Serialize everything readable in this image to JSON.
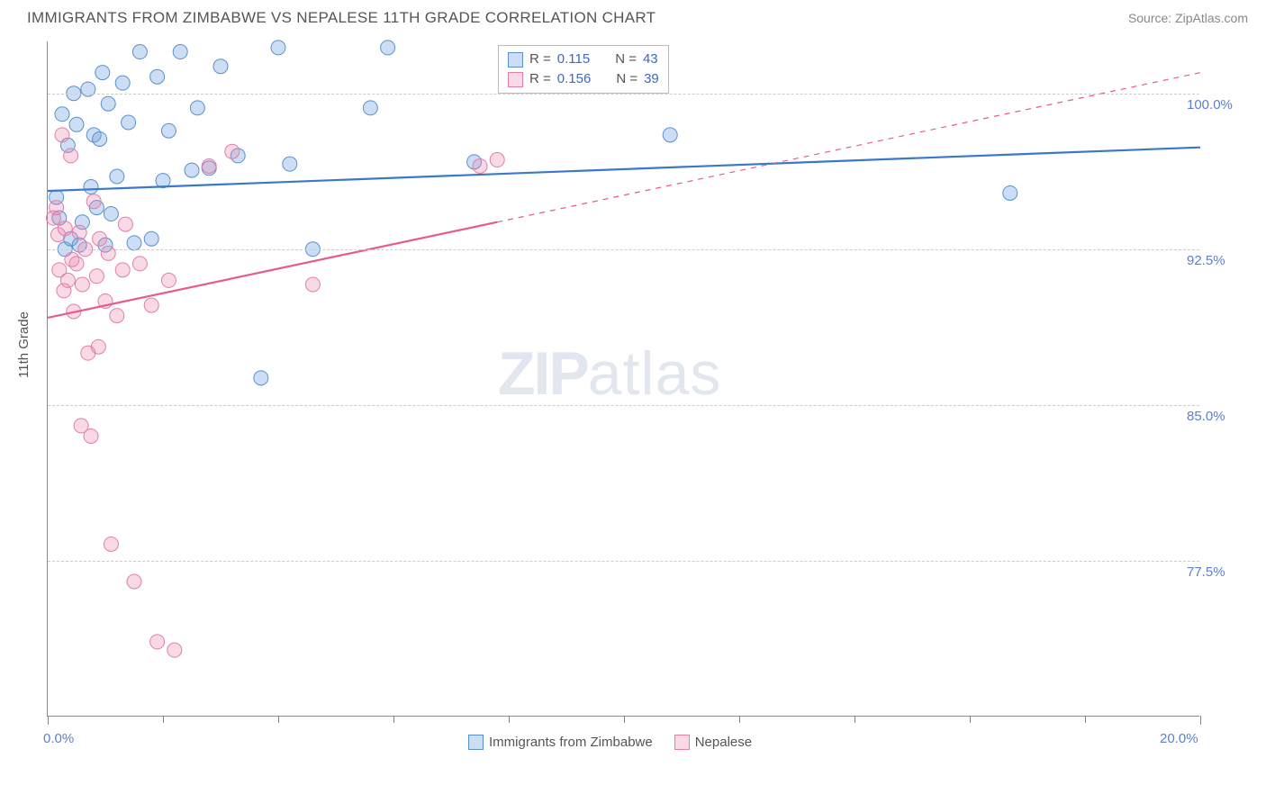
{
  "title": "IMMIGRANTS FROM ZIMBABWE VS NEPALESE 11TH GRADE CORRELATION CHART",
  "source": "Source: ZipAtlas.com",
  "ylabel": "11th Grade",
  "watermark": {
    "bold": "ZIP",
    "rest": "atlas"
  },
  "chart": {
    "type": "scatter-with-regression",
    "xlim": [
      0.0,
      20.0
    ],
    "ylim": [
      70.0,
      102.5
    ],
    "x_ticks": [
      0.0,
      20.0
    ],
    "x_tick_labels": [
      "0.0%",
      "20.0%"
    ],
    "x_minor_ticks": [
      2.0,
      4.0,
      6.0,
      8.0,
      10.0,
      12.0,
      14.0,
      16.0,
      18.0
    ],
    "y_ticks": [
      77.5,
      85.0,
      92.5,
      100.0
    ],
    "y_tick_labels": [
      "77.5%",
      "85.0%",
      "92.5%",
      "100.0%"
    ],
    "grid_color": "#cccccc",
    "axis_color": "#888888",
    "background_color": "#ffffff",
    "marker_radius": 8,
    "marker_stroke_width": 1,
    "line_width": 2.2
  },
  "series": [
    {
      "name": "Immigrants from Zimbabwe",
      "fill": "rgba(108,160,220,0.35)",
      "stroke": "#5a8fd0",
      "line_color": "#3b78c9",
      "r_label": "R = ",
      "r_value": "0.115",
      "n_label": "N = ",
      "n_value": "43",
      "regression": {
        "x1": 0.0,
        "y1": 95.3,
        "x2": 20.0,
        "y2": 97.4,
        "solid_to_x": 20.0
      },
      "points": [
        [
          0.15,
          95.0
        ],
        [
          0.2,
          94.0
        ],
        [
          0.25,
          99.0
        ],
        [
          0.3,
          92.5
        ],
        [
          0.35,
          97.5
        ],
        [
          0.4,
          93.0
        ],
        [
          0.45,
          100.0
        ],
        [
          0.5,
          98.5
        ],
        [
          0.55,
          92.7
        ],
        [
          0.6,
          93.8
        ],
        [
          0.7,
          100.2
        ],
        [
          0.75,
          95.5
        ],
        [
          0.8,
          98.0
        ],
        [
          0.85,
          94.5
        ],
        [
          0.9,
          97.8
        ],
        [
          0.95,
          101.0
        ],
        [
          1.0,
          92.7
        ],
        [
          1.05,
          99.5
        ],
        [
          1.1,
          94.2
        ],
        [
          1.2,
          96.0
        ],
        [
          1.3,
          100.5
        ],
        [
          1.4,
          98.6
        ],
        [
          1.5,
          92.8
        ],
        [
          1.6,
          102.0
        ],
        [
          1.8,
          93.0
        ],
        [
          1.9,
          100.8
        ],
        [
          2.0,
          95.8
        ],
        [
          2.1,
          98.2
        ],
        [
          2.3,
          102.0
        ],
        [
          2.5,
          96.3
        ],
        [
          2.6,
          99.3
        ],
        [
          2.8,
          96.4
        ],
        [
          3.0,
          101.3
        ],
        [
          3.3,
          97.0
        ],
        [
          3.7,
          86.3
        ],
        [
          4.0,
          102.2
        ],
        [
          4.2,
          96.6
        ],
        [
          4.6,
          92.5
        ],
        [
          5.6,
          99.3
        ],
        [
          5.9,
          102.2
        ],
        [
          7.4,
          96.7
        ],
        [
          10.8,
          98.0
        ],
        [
          16.7,
          95.2
        ]
      ]
    },
    {
      "name": "Nepalese",
      "fill": "rgba(235,130,170,0.30)",
      "stroke": "#e07fa8",
      "line_color": "#e65a8e",
      "r_label": "R = ",
      "r_value": "0.156",
      "n_label": "N = ",
      "n_value": "39",
      "regression": {
        "x1": 0.0,
        "y1": 89.2,
        "x2": 20.0,
        "y2": 101.0,
        "solid_to_x": 7.8
      },
      "points": [
        [
          0.1,
          94.0
        ],
        [
          0.15,
          94.5
        ],
        [
          0.18,
          93.2
        ],
        [
          0.2,
          91.5
        ],
        [
          0.25,
          98.0
        ],
        [
          0.28,
          90.5
        ],
        [
          0.3,
          93.5
        ],
        [
          0.35,
          91.0
        ],
        [
          0.4,
          97.0
        ],
        [
          0.42,
          92.0
        ],
        [
          0.45,
          89.5
        ],
        [
          0.5,
          91.8
        ],
        [
          0.55,
          93.3
        ],
        [
          0.58,
          84.0
        ],
        [
          0.6,
          90.8
        ],
        [
          0.65,
          92.5
        ],
        [
          0.7,
          87.5
        ],
        [
          0.75,
          83.5
        ],
        [
          0.8,
          94.8
        ],
        [
          0.85,
          91.2
        ],
        [
          0.88,
          87.8
        ],
        [
          0.9,
          93.0
        ],
        [
          1.0,
          90.0
        ],
        [
          1.05,
          92.3
        ],
        [
          1.1,
          78.3
        ],
        [
          1.2,
          89.3
        ],
        [
          1.3,
          91.5
        ],
        [
          1.35,
          93.7
        ],
        [
          1.5,
          76.5
        ],
        [
          1.6,
          91.8
        ],
        [
          1.8,
          89.8
        ],
        [
          1.9,
          73.6
        ],
        [
          2.1,
          91.0
        ],
        [
          2.2,
          73.2
        ],
        [
          2.8,
          96.5
        ],
        [
          3.2,
          97.2
        ],
        [
          4.6,
          90.8
        ],
        [
          7.5,
          96.5
        ],
        [
          7.8,
          96.8
        ]
      ]
    }
  ],
  "legend_top": {
    "rows": [
      {
        "series_index": 0
      },
      {
        "series_index": 1
      }
    ]
  },
  "legend_bottom": {
    "items": [
      {
        "series_index": 0
      },
      {
        "series_index": 1
      }
    ]
  },
  "value_color": "#3c68c8",
  "label_color": "#555555"
}
